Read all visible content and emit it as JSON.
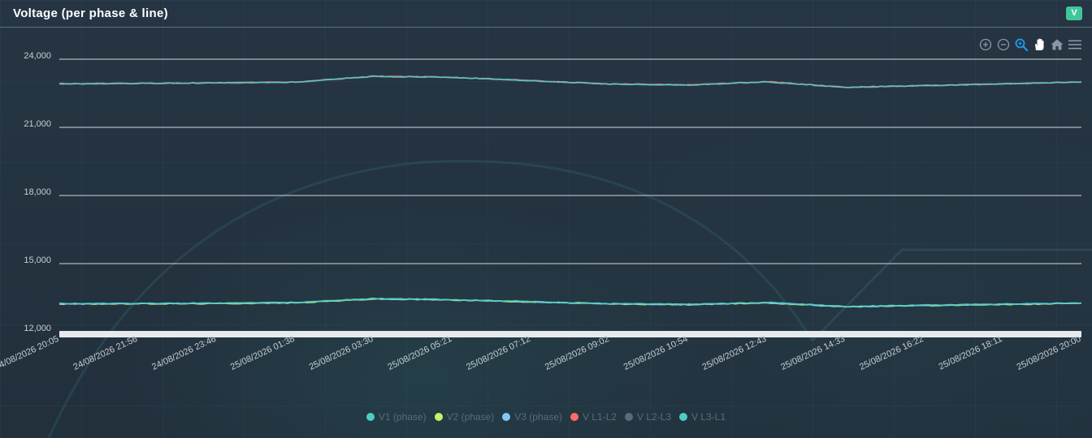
{
  "header": {
    "title": "Voltage (per phase & line)",
    "badge": "V",
    "badge_color": "#3fc79a"
  },
  "toolbar": {
    "icons": [
      "zoom-in-icon",
      "zoom-out-icon",
      "selection-zoom-icon",
      "pan-icon",
      "reset-zoom-home-icon",
      "menu-icon"
    ]
  },
  "chart_data": {
    "type": "line",
    "title": "",
    "xlabel": "",
    "ylabel": "",
    "ylim": [
      12000,
      24000
    ],
    "y_ticks": [
      {
        "value": 24000,
        "label": "24,000"
      },
      {
        "value": 21000,
        "label": "21,000"
      },
      {
        "value": 18000,
        "label": "18,000"
      },
      {
        "value": 15000,
        "label": "15,000"
      },
      {
        "value": 12000,
        "label": "12,000"
      }
    ],
    "x_tick_labels": [
      "24/08/2026 20:05",
      "24/08/2026 21:56",
      "24/08/2026 23:46",
      "25/08/2026 01:38",
      "25/08/2026 03:30",
      "25/08/2026 05:21",
      "25/08/2026 07:12",
      "25/08/2026 09:02",
      "25/08/2026 10:54",
      "25/08/2026 12:43",
      "25/08/2026 14:33",
      "25/08/2026 16:22",
      "25/08/2026 18:11",
      "25/08/2026 20:00"
    ],
    "x": [
      "24/08/2026 20:05",
      "24/08/2026 21:56",
      "24/08/2026 23:46",
      "25/08/2026 01:38",
      "25/08/2026 03:30",
      "25/08/2026 05:21",
      "25/08/2026 07:12",
      "25/08/2026 09:02",
      "25/08/2026 10:54",
      "25/08/2026 12:43",
      "25/08/2026 14:33",
      "25/08/2026 16:22",
      "25/08/2026 18:11",
      "25/08/2026 20:00"
    ],
    "series": [
      {
        "name": "V1 (phase)",
        "color": "#4ecdc4",
        "values": [
          13240,
          13250,
          13260,
          13290,
          13460,
          13420,
          13330,
          13240,
          13210,
          13290,
          13120,
          13170,
          13220,
          13270
        ]
      },
      {
        "name": "V2 (phase)",
        "color": "#c6f26b",
        "values": [
          13220,
          13230,
          13240,
          13270,
          13440,
          13400,
          13310,
          13220,
          13190,
          13270,
          13100,
          13150,
          13200,
          13250
        ]
      },
      {
        "name": "V3 (phase)",
        "color": "#7fc8f8",
        "values": [
          13230,
          13240,
          13250,
          13280,
          13450,
          13410,
          13320,
          13230,
          13200,
          13280,
          13110,
          13160,
          13210,
          13260
        ]
      },
      {
        "name": "V L1-L2",
        "color": "#ff6b6b",
        "values": [
          22920,
          22940,
          22960,
          22990,
          23250,
          23210,
          23060,
          22910,
          22870,
          23010,
          22770,
          22840,
          22920,
          23000
        ]
      },
      {
        "name": "V L2-L3",
        "color": "#5a6b78",
        "values": [
          22910,
          22930,
          22950,
          22980,
          23240,
          23200,
          23050,
          22900,
          22860,
          23000,
          22760,
          22830,
          22910,
          22990
        ]
      },
      {
        "name": "V L3-L1",
        "color": "#4ecdc4",
        "values": [
          22915,
          22935,
          22955,
          22985,
          23245,
          23205,
          23055,
          22905,
          22865,
          23005,
          22765,
          22835,
          22915,
          22995
        ]
      }
    ],
    "legend_position": "bottom-center",
    "grid": true
  }
}
